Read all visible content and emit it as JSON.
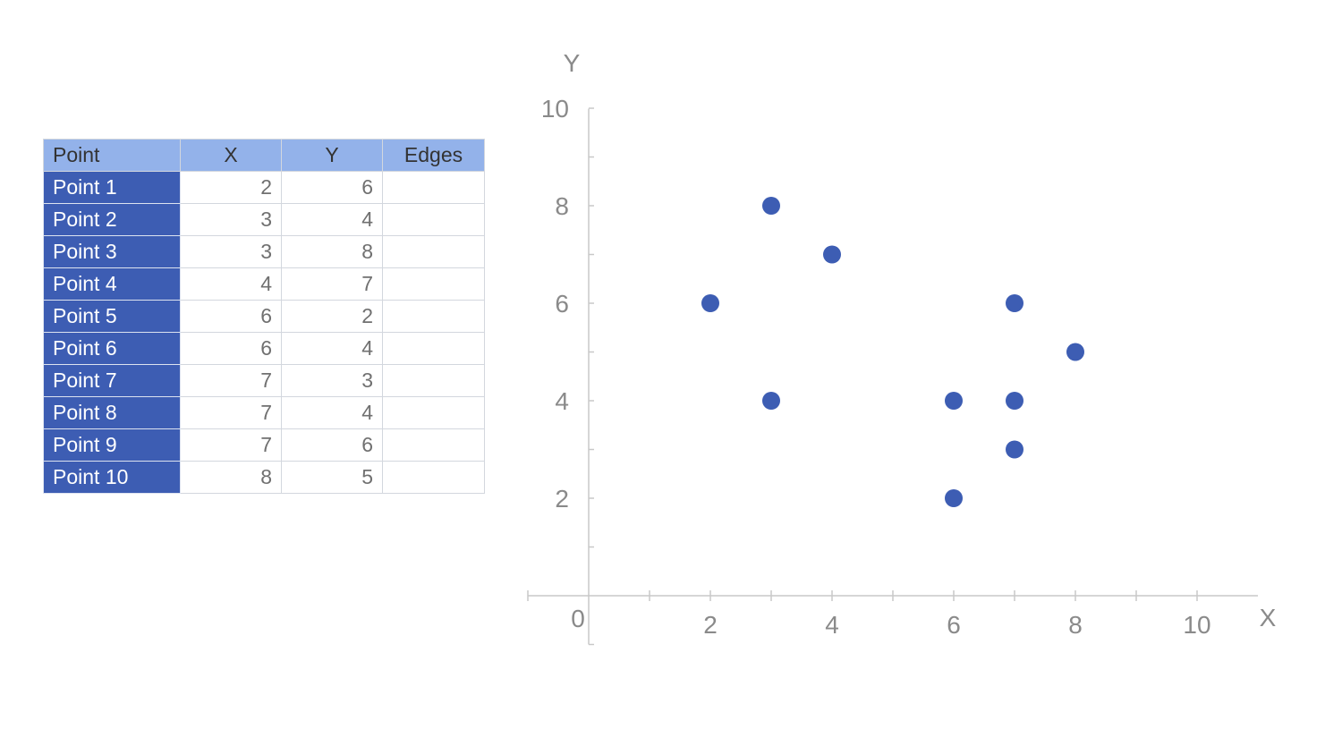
{
  "table": {
    "headers": [
      "Point",
      "X",
      "Y",
      "Edges"
    ],
    "rows": [
      {
        "name": "Point 1",
        "x": "2",
        "y": "6",
        "edges": ""
      },
      {
        "name": "Point 2",
        "x": "3",
        "y": "4",
        "edges": ""
      },
      {
        "name": "Point 3",
        "x": "3",
        "y": "8",
        "edges": ""
      },
      {
        "name": "Point 4",
        "x": "4",
        "y": "7",
        "edges": ""
      },
      {
        "name": "Point 5",
        "x": "6",
        "y": "2",
        "edges": ""
      },
      {
        "name": "Point 6",
        "x": "6",
        "y": "4",
        "edges": ""
      },
      {
        "name": "Point 7",
        "x": "7",
        "y": "3",
        "edges": ""
      },
      {
        "name": "Point 8",
        "x": "7",
        "y": "4",
        "edges": ""
      },
      {
        "name": "Point 9",
        "x": "7",
        "y": "6",
        "edges": ""
      },
      {
        "name": "Point 10",
        "x": "8",
        "y": "5",
        "edges": ""
      }
    ]
  },
  "chart_data": {
    "type": "scatter",
    "title": "",
    "xlabel": "X",
    "ylabel": "Y",
    "origin_label": "0",
    "xlim": [
      -1,
      11
    ],
    "ylim": [
      -1,
      11
    ],
    "x_ticks": [
      2,
      4,
      6,
      8,
      10
    ],
    "y_ticks": [
      2,
      4,
      6,
      8,
      10
    ],
    "grid": false,
    "marker_color": "#3d5db3",
    "axis_color": "#c8c8c8",
    "points": [
      {
        "label": "Point 1",
        "x": 2,
        "y": 6
      },
      {
        "label": "Point 2",
        "x": 3,
        "y": 4
      },
      {
        "label": "Point 3",
        "x": 3,
        "y": 8
      },
      {
        "label": "Point 4",
        "x": 4,
        "y": 7
      },
      {
        "label": "Point 5",
        "x": 6,
        "y": 2
      },
      {
        "label": "Point 6",
        "x": 6,
        "y": 4
      },
      {
        "label": "Point 7",
        "x": 7,
        "y": 3
      },
      {
        "label": "Point 8",
        "x": 7,
        "y": 4
      },
      {
        "label": "Point 9",
        "x": 7,
        "y": 6
      },
      {
        "label": "Point 10",
        "x": 8,
        "y": 5
      }
    ]
  }
}
